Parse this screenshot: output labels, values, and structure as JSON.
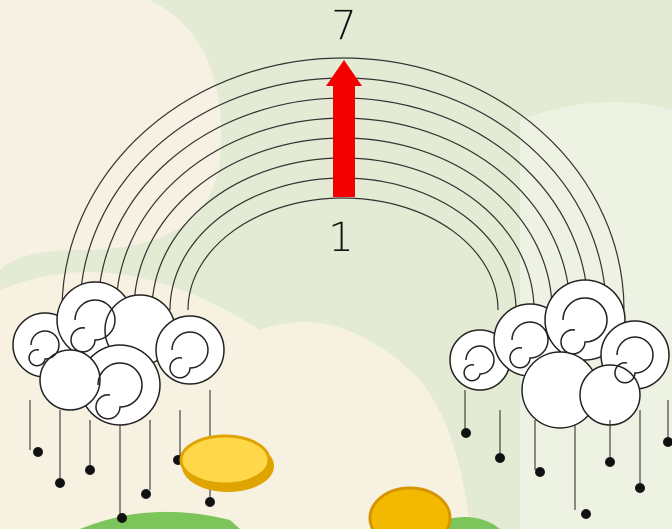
{
  "labels": {
    "top": "7",
    "bottom": "1"
  }
}
